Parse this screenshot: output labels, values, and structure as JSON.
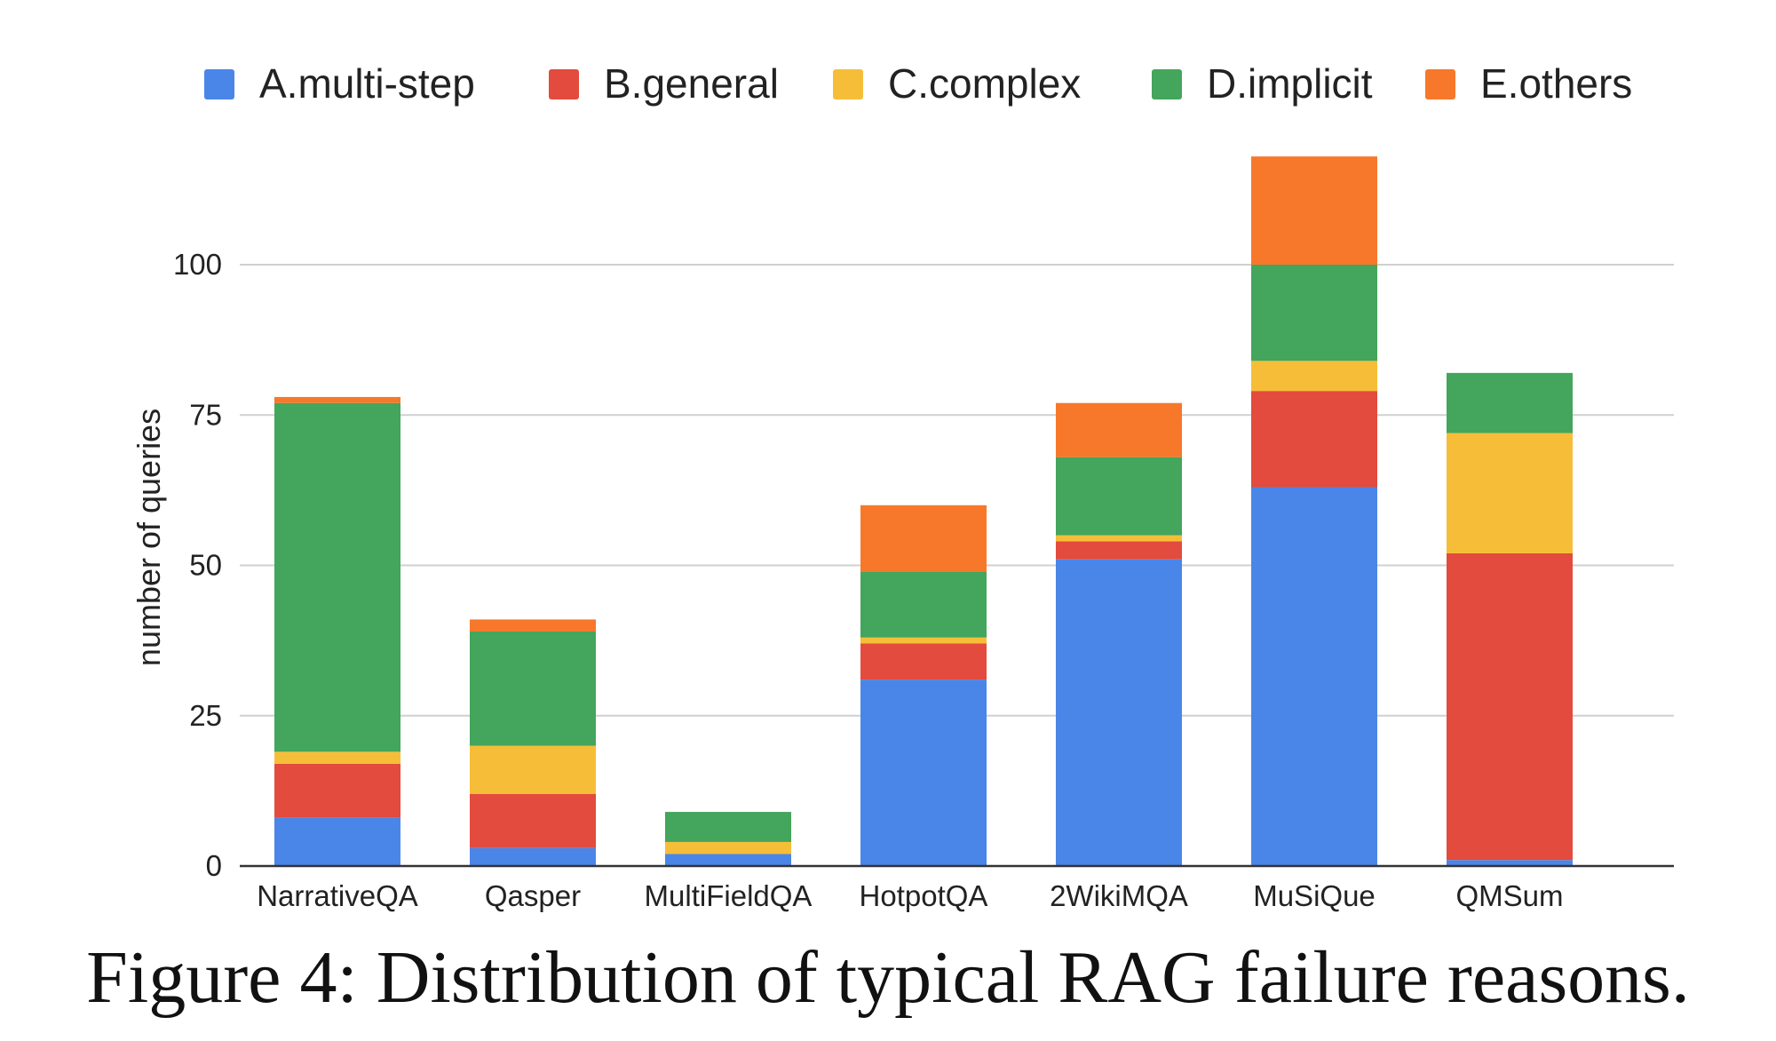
{
  "caption": "Figure 4: Distribution of typical RAG failure reasons.",
  "chart_data": {
    "type": "bar",
    "stacked": true,
    "title": "",
    "xlabel": "",
    "ylabel": "number of queries",
    "ylim": [
      0,
      120
    ],
    "yticks": [
      0,
      25,
      50,
      75,
      100
    ],
    "grid": true,
    "legend_position": "top",
    "categories": [
      "NarrativeQA",
      "Qasper",
      "MultiFieldQA",
      "HotpotQA",
      "2WikiMQA",
      "MuSiQue",
      "QMSum"
    ],
    "series": [
      {
        "name": "A.multi-step",
        "color": "#4A86E8",
        "values": [
          8,
          3,
          2,
          31,
          51,
          63,
          1
        ]
      },
      {
        "name": "B.general",
        "color": "#E24B3D",
        "values": [
          9,
          9,
          0,
          6,
          3,
          16,
          51
        ]
      },
      {
        "name": "C.complex",
        "color": "#F6BE38",
        "values": [
          2,
          8,
          2,
          1,
          1,
          5,
          20
        ]
      },
      {
        "name": "D.implicit",
        "color": "#44A55C",
        "values": [
          58,
          19,
          5,
          11,
          13,
          16,
          10
        ]
      },
      {
        "name": "E.others",
        "color": "#F7782A",
        "values": [
          1,
          2,
          0,
          11,
          9,
          18,
          0
        ]
      }
    ]
  }
}
